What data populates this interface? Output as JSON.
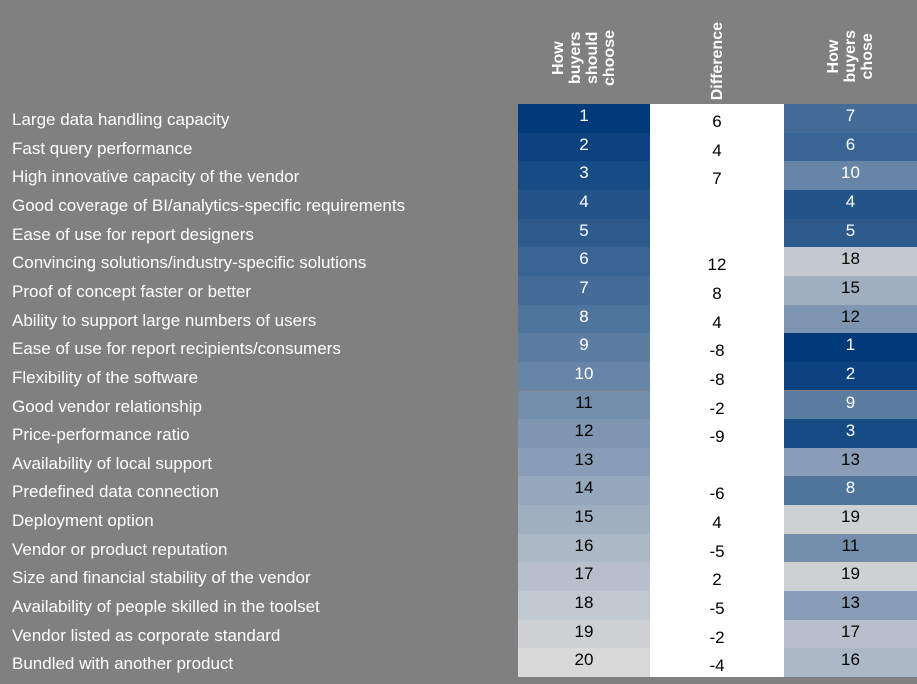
{
  "chart_data": {
    "type": "heatmap",
    "columns": [
      "How\nbuyers\nshould\nchoose",
      "Difference",
      "How\nbuyers\nchose"
    ],
    "color_scale": {
      "low_rank": "#003A7A",
      "high_rank": "#D9D9D9"
    },
    "rows": [
      {
        "label": "Large data handling capacity",
        "should": 1,
        "diff": "6",
        "chose": 7
      },
      {
        "label": "Fast query performance",
        "should": 2,
        "diff": "4",
        "chose": 6
      },
      {
        "label": "High innovative capacity of the vendor",
        "should": 3,
        "diff": "7",
        "chose": 10
      },
      {
        "label": "Good coverage of BI/analytics-specific requirements",
        "should": 4,
        "diff": "",
        "chose": 4
      },
      {
        "label": "Ease of use for report designers",
        "should": 5,
        "diff": "",
        "chose": 5
      },
      {
        "label": "Convincing solutions/industry-specific solutions",
        "should": 6,
        "diff": "12",
        "chose": 18
      },
      {
        "label": "Proof of concept faster or better",
        "should": 7,
        "diff": "8",
        "chose": 15
      },
      {
        "label": "Ability to support large numbers of users",
        "should": 8,
        "diff": "4",
        "chose": 12
      },
      {
        "label": "Ease of use for report recipients/consumers",
        "should": 9,
        "diff": "-8",
        "chose": 1
      },
      {
        "label": "Flexibility of the software",
        "should": 10,
        "diff": "-8",
        "chose": 2
      },
      {
        "label": "Good vendor relationship",
        "should": 11,
        "diff": "-2",
        "chose": 9
      },
      {
        "label": "Price-performance ratio",
        "should": 12,
        "diff": "-9",
        "chose": 3
      },
      {
        "label": "Availability of local support",
        "should": 13,
        "diff": "",
        "chose": 13
      },
      {
        "label": "Predefined data connection",
        "should": 14,
        "diff": "-6",
        "chose": 8
      },
      {
        "label": "Deployment option",
        "should": 15,
        "diff": "4",
        "chose": 19
      },
      {
        "label": "Vendor or product reputation",
        "should": 16,
        "diff": "-5",
        "chose": 11
      },
      {
        "label": "Size and financial stability of the vendor",
        "should": 17,
        "diff": "2",
        "chose": 19
      },
      {
        "label": "Availability of people skilled in the toolset",
        "should": 18,
        "diff": "-5",
        "chose": 13
      },
      {
        "label": "Vendor listed as corporate standard",
        "should": 19,
        "diff": "-2",
        "chose": 17
      },
      {
        "label": "Bundled with another product",
        "should": 20,
        "diff": "-4",
        "chose": 16
      }
    ]
  }
}
